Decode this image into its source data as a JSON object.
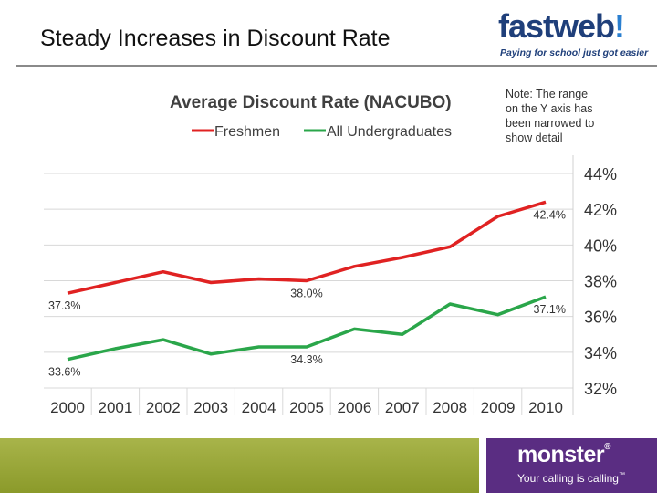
{
  "slide": {
    "title": "Steady Increases in Discount Rate"
  },
  "logos": {
    "top": {
      "word_part1": "fast",
      "word_part2": "web",
      "mark": "!",
      "tagline": "Paying for school just got easier"
    },
    "bottom": {
      "word": "monster",
      "mark": "®",
      "tagline": "Your calling is calling",
      "tagline_mark": "™"
    }
  },
  "colors": {
    "freshmen": "#e02222",
    "undergrad": "#2aa64a",
    "grid": "#d8d8d8",
    "footer_green": "#94a232",
    "footer_purple": "#5a2d82"
  },
  "chart_data": {
    "type": "line",
    "title": "Average Discount Rate (NACUBO)",
    "note": [
      "Note: The range",
      "on the Y axis has",
      "been narrowed to",
      "show detail"
    ],
    "categories": [
      "2000",
      "2001",
      "2002",
      "2003",
      "2004",
      "2005",
      "2006",
      "2007",
      "2008",
      "2009",
      "2010"
    ],
    "ylim": [
      32,
      44
    ],
    "yticks": [
      44,
      42,
      40,
      38,
      36,
      34,
      32
    ],
    "ytick_labels": [
      "44%",
      "42%",
      "40%",
      "38%",
      "36%",
      "34%",
      "32%"
    ],
    "y_axis_side": "right",
    "grid": true,
    "legend_position": "top",
    "series": [
      {
        "name": "Freshmen",
        "color": "#e02222",
        "values": [
          37.3,
          37.9,
          38.5,
          37.9,
          38.1,
          38.0,
          38.8,
          39.3,
          39.9,
          41.6,
          42.4
        ]
      },
      {
        "name": "All Undergraduates",
        "color": "#2aa64a",
        "values": [
          33.6,
          34.2,
          34.7,
          33.9,
          34.3,
          34.3,
          35.3,
          35.0,
          36.7,
          36.1,
          37.1
        ]
      }
    ],
    "data_labels": [
      {
        "series": 0,
        "index": 0,
        "text": "37.3%",
        "pos": "below"
      },
      {
        "series": 0,
        "index": 5,
        "text": "38.0%",
        "pos": "below"
      },
      {
        "series": 0,
        "index": 10,
        "text": "42.4%",
        "pos": "below"
      },
      {
        "series": 1,
        "index": 0,
        "text": "33.6%",
        "pos": "below"
      },
      {
        "series": 1,
        "index": 5,
        "text": "34.3%",
        "pos": "below"
      },
      {
        "series": 1,
        "index": 10,
        "text": "37.1%",
        "pos": "below"
      }
    ]
  }
}
